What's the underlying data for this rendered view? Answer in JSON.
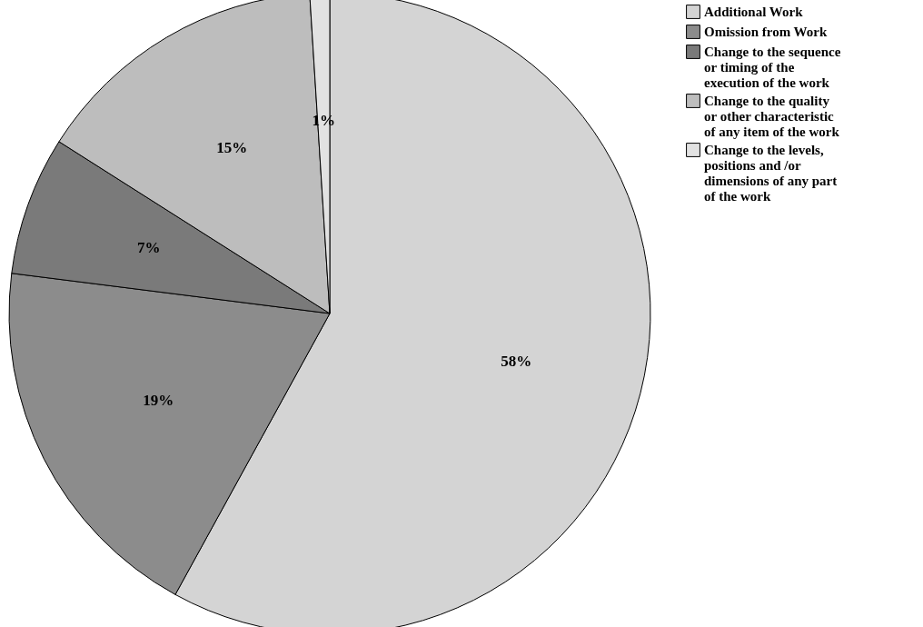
{
  "chart_data": {
    "type": "pie",
    "categories": [
      "Additional Work",
      "Omission from Work",
      "Change to the sequence or timing of the execution of the work",
      "Change to the quality or other characteristic of any item of the work",
      "Change to the levels, positions and /or dimensions of any part of the work"
    ],
    "values": [
      58,
      19,
      7,
      15,
      1
    ],
    "value_labels": [
      "58%",
      "19%",
      "7%",
      "15%",
      "1%"
    ],
    "colors": [
      "#d4d4d4",
      "#8c8c8c",
      "#7a7a7a",
      "#bdbdbd",
      "#e2e2e2"
    ],
    "legend": "top right"
  }
}
